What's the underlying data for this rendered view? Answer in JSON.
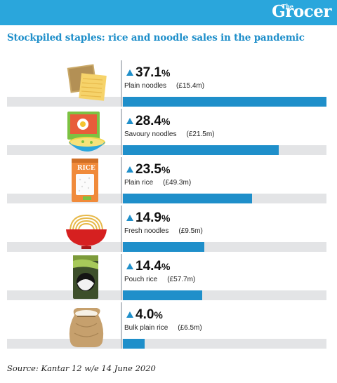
{
  "brand": {
    "small": "The",
    "name": "Grocer"
  },
  "title": "Stockpiled staples: rice and noodle sales in the pandemic",
  "source": "Source: Kantar 12 w/e 14 June 2020",
  "colors": {
    "accent": "#1f8fca",
    "brand_bar": "#2aa6dc",
    "track": "#e3e4e6"
  },
  "chart_data": {
    "type": "bar",
    "orientation": "horizontal",
    "title": "Stockpiled staples: rice and noodle sales in the pandemic",
    "unit": "%",
    "xlim": [
      0,
      37.1
    ],
    "items": [
      {
        "category": "Plain noodles",
        "change": 37.1,
        "pct_text": "37.1",
        "value_text": "(£15.4m)",
        "icon": "noodle-sheets-icon"
      },
      {
        "category": "Savoury noodles",
        "change": 28.4,
        "pct_text": "28.4",
        "value_text": "(£21.5m)",
        "icon": "noodle-bowl-icon"
      },
      {
        "category": "Plain rice",
        "change": 23.5,
        "pct_text": "23.5",
        "value_text": "(£49.3m)",
        "icon": "rice-bag-icon"
      },
      {
        "category": "Fresh noodles",
        "change": 14.9,
        "pct_text": "14.9",
        "value_text": "(£9.5m)",
        "icon": "red-noodle-bowl-icon"
      },
      {
        "category": "Pouch rice",
        "change": 14.4,
        "pct_text": "14.4",
        "value_text": "(£57.7m)",
        "icon": "rice-pouch-icon"
      },
      {
        "category": "Bulk plain rice",
        "change": 4.0,
        "pct_text": "4.0",
        "value_text": "(£6.5m)",
        "icon": "sack-icon"
      }
    ],
    "arrow_icon": "up-triangle-icon",
    "pct_symbol": "%"
  }
}
